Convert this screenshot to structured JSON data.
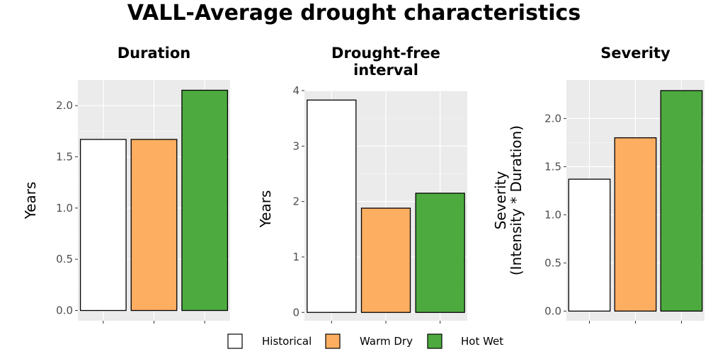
{
  "title": "VALL-Average drought characteristics",
  "legend": {
    "placement": "bottom",
    "items": [
      {
        "label": "Historical",
        "color": "#ffffff"
      },
      {
        "label": "Warm Dry",
        "color": "#fdae61"
      },
      {
        "label": "Hot Wet",
        "color": "#4daa3f"
      }
    ]
  },
  "chart_data": [
    {
      "type": "bar",
      "title": "Duration",
      "ylabel": "Years",
      "categories": [
        "Historical",
        "Warm Dry",
        "Hot Wet"
      ],
      "values": [
        1.67,
        1.67,
        2.15
      ],
      "ylim": [
        -0.1,
        2.25
      ],
      "yticks": [
        0.0,
        0.5,
        1.0,
        1.5,
        2.0
      ],
      "ytick_labels": [
        "0.0",
        "0.5",
        "1.0",
        "1.5",
        "2.0"
      ],
      "grid": true
    },
    {
      "type": "bar",
      "title": "Drought-free interval",
      "ylabel": "Years",
      "categories": [
        "Historical",
        "Warm Dry",
        "Hot Wet"
      ],
      "values": [
        3.83,
        1.88,
        2.15
      ],
      "ylim": [
        -0.15,
        4.0
      ],
      "yticks": [
        0,
        1,
        2,
        3,
        4
      ],
      "ytick_labels": [
        "0",
        "1",
        "2",
        "3",
        "4"
      ],
      "grid": true
    },
    {
      "type": "bar",
      "title": "Severity",
      "ylabel": "Severity (Intensity * Duration)",
      "categories": [
        "Historical",
        "Warm Dry",
        "Hot Wet"
      ],
      "values": [
        1.37,
        1.8,
        2.29
      ],
      "ylim": [
        -0.1,
        2.4
      ],
      "yticks": [
        0.0,
        0.5,
        1.0,
        1.5,
        2.0
      ],
      "ytick_labels": [
        "0.0",
        "0.5",
        "1.0",
        "1.5",
        "2.0"
      ],
      "grid": true
    }
  ]
}
